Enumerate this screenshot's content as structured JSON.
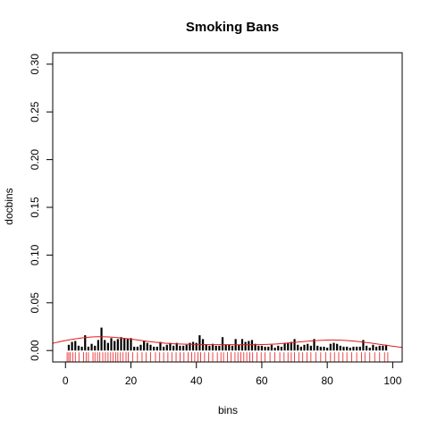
{
  "chart_data": {
    "type": "bar",
    "title": "Smoking Bans",
    "xlabel": "bins",
    "ylabel": "docbins",
    "xlim": [
      -3.9,
      102.9
    ],
    "ylim": [
      -0.012,
      0.312
    ],
    "x_ticks": [
      0,
      20,
      40,
      60,
      80,
      100
    ],
    "x_tick_labels": [
      "0",
      "20",
      "40",
      "60",
      "80",
      "100"
    ],
    "y_ticks": [
      0.0,
      0.05,
      0.1,
      0.15,
      0.2,
      0.25,
      0.3
    ],
    "y_tick_labels": [
      "0.00",
      "0.05",
      "0.10",
      "0.15",
      "0.20",
      "0.25",
      "0.30"
    ],
    "grid": false,
    "series": [
      {
        "type": "histogram-spikes",
        "color": "#000000",
        "x": [
          1,
          2,
          3,
          4,
          5,
          6,
          7,
          8,
          9,
          10,
          11,
          12,
          13,
          14,
          15,
          16,
          17,
          18,
          19,
          20,
          21,
          22,
          23,
          24,
          25,
          26,
          27,
          28,
          29,
          30,
          31,
          32,
          33,
          34,
          35,
          36,
          37,
          38,
          39,
          40,
          41,
          42,
          43,
          44,
          45,
          46,
          47,
          48,
          49,
          50,
          51,
          52,
          53,
          54,
          55,
          56,
          57,
          58,
          59,
          60,
          61,
          62,
          63,
          64,
          65,
          66,
          67,
          68,
          69,
          70,
          71,
          72,
          73,
          74,
          75,
          76,
          77,
          78,
          79,
          80,
          81,
          82,
          83,
          84,
          85,
          86,
          87,
          88,
          89,
          90,
          91,
          92,
          93,
          94,
          95,
          96,
          97,
          98
        ],
        "values": [
          0.006,
          0.009,
          0.01,
          0.005,
          0.004,
          0.016,
          0.004,
          0.007,
          0.005,
          0.011,
          0.024,
          0.011,
          0.008,
          0.013,
          0.01,
          0.012,
          0.014,
          0.013,
          0.012,
          0.013,
          0.004,
          0.004,
          0.006,
          0.01,
          0.008,
          0.006,
          0.004,
          0.004,
          0.009,
          0.004,
          0.006,
          0.008,
          0.005,
          0.008,
          0.005,
          0.005,
          0.006,
          0.008,
          0.009,
          0.008,
          0.016,
          0.012,
          0.006,
          0.005,
          0.007,
          0.005,
          0.005,
          0.014,
          0.006,
          0.006,
          0.005,
          0.012,
          0.006,
          0.012,
          0.009,
          0.01,
          0.011,
          0.007,
          0.005,
          0.005,
          0.004,
          0.004,
          0.006,
          0.003,
          0.005,
          0.004,
          0.008,
          0.008,
          0.009,
          0.012,
          0.006,
          0.004,
          0.006,
          0.007,
          0.005,
          0.012,
          0.005,
          0.004,
          0.004,
          0.003,
          0.007,
          0.008,
          0.007,
          0.005,
          0.004,
          0.004,
          0.003,
          0.004,
          0.004,
          0.004,
          0.011,
          0.005,
          0.003,
          0.006,
          0.004,
          0.005,
          0.005,
          0.006
        ]
      },
      {
        "type": "smooth-line",
        "color": "#e8191c",
        "x": [
          -4,
          0,
          5,
          10,
          15,
          20,
          25,
          30,
          35,
          40,
          45,
          50,
          55,
          60,
          65,
          70,
          75,
          80,
          85,
          90,
          95,
          100,
          103
        ],
        "values": [
          0.0075,
          0.0105,
          0.0132,
          0.0144,
          0.0138,
          0.012,
          0.0096,
          0.0078,
          0.0068,
          0.0064,
          0.0062,
          0.0061,
          0.0061,
          0.0063,
          0.007,
          0.0085,
          0.01,
          0.011,
          0.0107,
          0.0092,
          0.007,
          0.0045,
          0.0032
        ]
      },
      {
        "type": "rug",
        "color": "#e8191c",
        "x": [
          0.5,
          1,
          1.5,
          2.2,
          3,
          4.1,
          5.5,
          6.3,
          7,
          8.4,
          9,
          9.8,
          10.5,
          11.4,
          12.2,
          13,
          13.8,
          14.5,
          15.3,
          16,
          16.8,
          17.6,
          18.5,
          19.2,
          20.5,
          22,
          23.4,
          24.6,
          26,
          27.5,
          28.8,
          30,
          31.3,
          32.5,
          33.8,
          35,
          36.2,
          37.5,
          38.6,
          39.5,
          40.5,
          41.3,
          42.5,
          43.8,
          45,
          46.4,
          47.5,
          48.3,
          49.5,
          50.6,
          51.8,
          52.7,
          53.6,
          54.5,
          55.4,
          56.3,
          57.2,
          58.5,
          59.8,
          61,
          62.5,
          64,
          65.5,
          66.8,
          68,
          69,
          70,
          71.3,
          72.5,
          73.8,
          75,
          76.5,
          78,
          79.5,
          81,
          82.2,
          83.5,
          84.8,
          86,
          87.5,
          89,
          90.5,
          91.5,
          93,
          94.5,
          96,
          97.5,
          98.5
        ]
      }
    ]
  }
}
